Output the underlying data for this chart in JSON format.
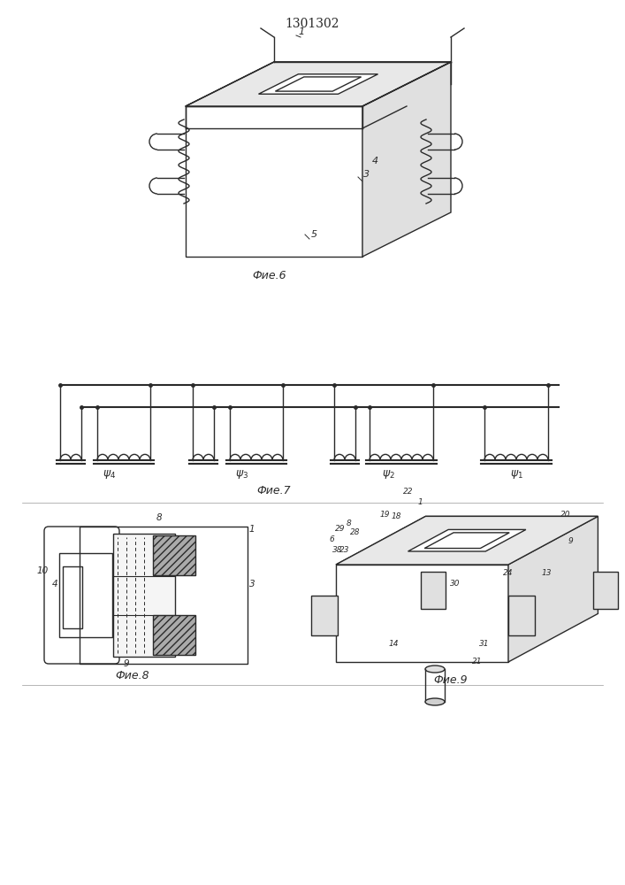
{
  "title": "1301302",
  "fig6_caption": "Фие.6",
  "fig7_caption": "Фие.7",
  "fig8_caption": "Фие.8",
  "fig9_caption": "Фие.9",
  "background_color": "#ffffff",
  "line_color": "#2a2a2a",
  "lw": 1.0
}
